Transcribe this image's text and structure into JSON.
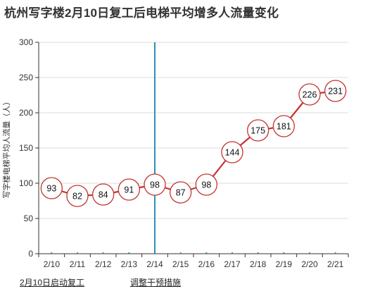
{
  "chart_data": {
    "type": "line",
    "title": "杭州写字楼2月10日复工后电梯平均增多人流量变化",
    "xlabel": "",
    "ylabel": "写字楼电梯平均人流量（人）",
    "categories": [
      "2/10",
      "2/11",
      "2/12",
      "2/13",
      "2/14",
      "2/15",
      "2/16",
      "2/17",
      "2/18",
      "2/19",
      "2/20",
      "2/21"
    ],
    "series": [
      {
        "values": [
          93,
          82,
          84,
          91,
          98,
          87,
          98,
          144,
          175,
          181,
          226,
          231
        ]
      }
    ],
    "ylim": [
      0,
      300
    ],
    "yticks": [
      0,
      50,
      100,
      150,
      200,
      250,
      300
    ],
    "grid": "horizontal",
    "marker_line_category": "2/14",
    "annotations": [
      "2月10日启动复工",
      "调整干预措施"
    ],
    "colors": {
      "line": "#c23531",
      "marker_fill": "#ffffff",
      "marker_line": "#2f8fb5",
      "grid": "#dcdcdc",
      "axis": "#333333"
    }
  }
}
